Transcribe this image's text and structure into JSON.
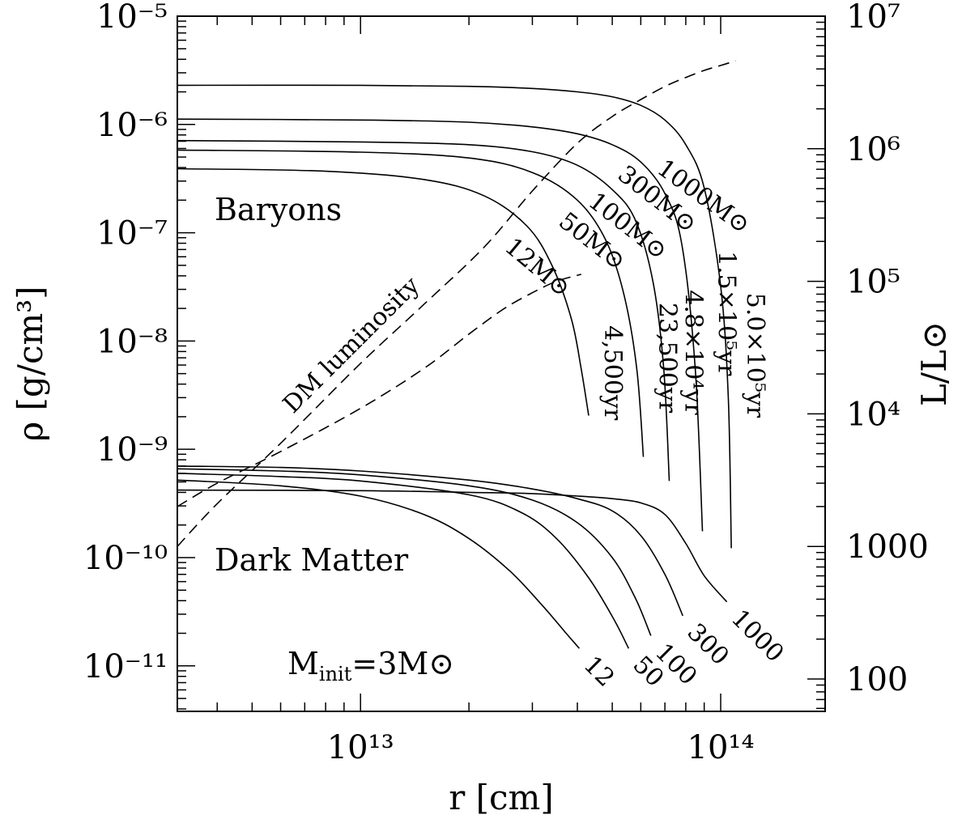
{
  "chart_data": {
    "type": "line",
    "title": "",
    "xlabel": "r [cm]",
    "ylabel_left": "ρ [g/cm³]",
    "ylabel_right": "L/L⊙",
    "x_scale": "log",
    "xlim": [
      3100000000000.0,
      195000000000000.0
    ],
    "x_ticks": [
      {
        "value": 10000000000000.0,
        "label": "10¹³"
      },
      {
        "value": 100000000000000.0,
        "label": "10¹⁴"
      }
    ],
    "y_left_scale": "log",
    "ylim_left": [
      3.8e-12,
      1e-05
    ],
    "y_left_ticks": [
      {
        "value": 1e-05,
        "label": "10⁻⁵"
      },
      {
        "value": 1e-06,
        "label": "10⁻⁶"
      },
      {
        "value": 1e-07,
        "label": "10⁻⁷"
      },
      {
        "value": 1e-08,
        "label": "10⁻⁸"
      },
      {
        "value": 1e-09,
        "label": "10⁻⁹"
      },
      {
        "value": 1e-10,
        "label": "10⁻¹⁰"
      },
      {
        "value": 1e-11,
        "label": "10⁻¹¹"
      }
    ],
    "y_right_scale": "log",
    "ylim_right": [
      57,
      10000000.0
    ],
    "y_right_ticks": [
      {
        "value": 10000000.0,
        "label": "10⁷"
      },
      {
        "value": 1000000.0,
        "label": "10⁶"
      },
      {
        "value": 100000.0,
        "label": "10⁵"
      },
      {
        "value": 10000.0,
        "label": "10⁴"
      },
      {
        "value": 1000,
        "label": "1000"
      },
      {
        "value": 100,
        "label": "100"
      }
    ],
    "grid": false,
    "annotations": {
      "baryons": "Baryons",
      "dark_matter": "Dark Matter",
      "dm_luminosity": "DM luminosity",
      "minit": "M",
      "minit_sub": "init",
      "minit_rest": "=3M⊙"
    },
    "baryon_series": [
      {
        "name": "12M⊙",
        "time": "4,500yr",
        "rho_center": 3.9e-07,
        "r_edge": 43000000000000.0,
        "rho_edge": 2.05e-09,
        "x": [
          3100000000000.0,
          8000000000000.0,
          15000000000000.0,
          22000000000000.0,
          29000000000000.0,
          34000000000000.0,
          38500000000000.0,
          41000000000000.0,
          43000000000000.0
        ],
        "y": [
          3.9e-07,
          3.7e-07,
          3.1e-07,
          2.2e-07,
          1.15e-07,
          5e-08,
          1.6e-08,
          5.5e-09,
          2.05e-09
        ]
      },
      {
        "name": "50M⊙",
        "time": "23,500yr",
        "rho_center": 5.8e-07,
        "r_edge": 61000000000000.0,
        "rho_edge": 8.5e-10,
        "x": [
          3100000000000.0,
          10000000000000.0,
          20000000000000.0,
          30000000000000.0,
          40000000000000.0,
          48000000000000.0,
          54000000000000.0,
          58500000000000.0,
          61000000000000.0
        ],
        "y": [
          5.8e-07,
          5.55e-07,
          4.9e-07,
          3.6e-07,
          2e-07,
          8.5e-08,
          2.6e-08,
          5.5e-09,
          8.5e-10
        ]
      },
      {
        "name": "100M⊙",
        "time": "4.8×10⁴yr",
        "rho_center": 7.1e-07,
        "r_edge": 72000000000000.0,
        "rho_edge": 5.1e-10,
        "x": [
          3100000000000.0,
          10000000000000.0,
          20000000000000.0,
          30000000000000.0,
          40000000000000.0,
          50000000000000.0,
          58000000000000.0,
          65000000000000.0,
          69500000000000.0,
          72000000000000.0
        ],
        "y": [
          7.1e-07,
          6.9e-07,
          6.5e-07,
          5.6e-07,
          4.2e-07,
          2.5e-07,
          1.3e-07,
          3.4e-08,
          5.5e-09,
          5.1e-10
        ]
      },
      {
        "name": "300M⊙",
        "time": "1.5×10⁵yr",
        "rho_center": 1.12e-06,
        "r_edge": 89000000000000.0,
        "rho_edge": 1.75e-10,
        "x": [
          3100000000000.0,
          10000000000000.0,
          20000000000000.0,
          30000000000000.0,
          40000000000000.0,
          50000000000000.0,
          60000000000000.0,
          70000000000000.0,
          78000000000000.0,
          85000000000000.0,
          89000000000000.0
        ],
        "y": [
          1.12e-06,
          1.1e-06,
          1.05e-06,
          9.5e-07,
          8.2e-07,
          6.5e-07,
          4.5e-07,
          2.3e-07,
          7.8e-08,
          5.5e-09,
          1.75e-10
        ]
      },
      {
        "name": "1000M⊙",
        "time": "5.0×10⁵yr",
        "rho_center": 2.3e-06,
        "r_edge": 107000000000000.0,
        "rho_edge": 1.22e-10,
        "x": [
          3100000000000.0,
          10000000000000.0,
          20000000000000.0,
          30000000000000.0,
          40000000000000.0,
          50000000000000.0,
          60000000000000.0,
          70000000000000.0,
          80000000000000.0,
          90000000000000.0,
          100000000000000.0,
          105000000000000.0,
          107000000000000.0
        ],
        "y": [
          2.3e-06,
          2.3e-06,
          2.25e-06,
          2.15e-06,
          2e-06,
          1.8e-06,
          1.5e-06,
          1.1e-06,
          6.5e-07,
          2.6e-07,
          3.2e-08,
          3e-09,
          1.22e-10
        ]
      }
    ],
    "dark_matter_series": [
      {
        "name": "12",
        "x": [
          3100000000000.0,
          6000000000000.0,
          10000000000000.0,
          15000000000000.0,
          20000000000000.0,
          26000000000000.0,
          32000000000000.0,
          37000000000000.0,
          40500000000000.0
        ],
        "y": [
          5.2e-10,
          4.6e-10,
          3.7e-10,
          2.5e-10,
          1.5e-10,
          7.5e-11,
          3.6e-11,
          2.05e-11,
          1.45e-11
        ]
      },
      {
        "name": "50",
        "x": [
          3100000000000.0,
          6000000000000.0,
          10000000000000.0,
          20000000000000.0,
          28000000000000.0,
          35000000000000.0,
          43000000000000.0,
          50500000000000.0,
          55500000000000.0
        ],
        "y": [
          6e-10,
          5.6e-10,
          5.1e-10,
          3.8e-10,
          2.6e-10,
          1.5e-10,
          6.5e-11,
          2.7e-11,
          1.45e-11
        ]
      },
      {
        "name": "100",
        "x": [
          3100000000000.0,
          6000000000000.0,
          10000000000000.0,
          20000000000000.0,
          30000000000000.0,
          40000000000000.0,
          50000000000000.0,
          58000000000000.0,
          64000000000000.0
        ],
        "y": [
          6.6e-10,
          6.3e-10,
          5.8e-10,
          4.6e-10,
          3.4e-10,
          2.1e-10,
          1e-10,
          4.2e-11,
          1.9e-11
        ]
      },
      {
        "name": "300",
        "x": [
          3100000000000.0,
          6000000000000.0,
          10000000000000.0,
          20000000000000.0,
          30000000000000.0,
          40000000000000.0,
          50000000000000.0,
          60000000000000.0,
          70000000000000.0,
          78500000000000.0
        ],
        "y": [
          7e-10,
          6.8e-10,
          6.3e-10,
          5.2e-10,
          4.3e-10,
          3.5e-10,
          2.7e-10,
          1.6e-10,
          7e-11,
          2.9e-11
        ]
      },
      {
        "name": "1000",
        "x": [
          3100000000000.0,
          10000000000000.0,
          20000000000000.0,
          30000000000000.0,
          40000000000000.0,
          50000000000000.0,
          60000000000000.0,
          70000000000000.0,
          80000000000000.0,
          90000000000000.0,
          104000000000000.0
        ],
        "y": [
          4.2e-10,
          4.15e-10,
          4e-10,
          3.9e-10,
          3.7e-10,
          3.5e-10,
          3.2e-10,
          2.5e-10,
          1.35e-10,
          6.8e-11,
          3.9e-11
        ]
      }
    ],
    "luminosity_series": [
      {
        "name": "DM luminosity",
        "axis": "right",
        "style": "dashed",
        "x": [
          3100000000000.0,
          4000000000000.0,
          6000000000000.0,
          10000000000000.0,
          15000000000000.0,
          22000000000000.0,
          30000000000000.0,
          40000000000000.0,
          50000000000000.0,
          60000000000000.0,
          70000000000000.0,
          80000000000000.0,
          90000000000000.0,
          100000000000000.0,
          110000000000000.0
        ],
        "y": [
          1000,
          2100,
          6000,
          24000,
          67000,
          180000,
          480000,
          1100000.0,
          1750000.0,
          2350000.0,
          2950000.0,
          3450000.0,
          3900000.0,
          4250000.0,
          4600000.0
        ]
      },
      {
        "name": "",
        "axis": "right",
        "style": "dashed",
        "x": [
          3100000000000.0,
          4000000000000.0,
          6000000000000.0,
          10000000000000.0,
          15000000000000.0,
          20000000000000.0,
          25000000000000.0,
          30000000000000.0,
          35000000000000.0,
          41000000000000.0
        ],
        "y": [
          2000,
          3000,
          5200,
          11000,
          22000,
          40000,
          62000,
          82000,
          100000,
          113000
        ]
      }
    ]
  }
}
